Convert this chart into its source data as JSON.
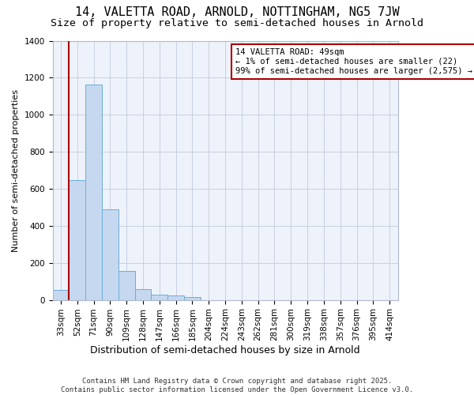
{
  "title": "14, VALETTA ROAD, ARNOLD, NOTTINGHAM, NG5 7JW",
  "subtitle": "Size of property relative to semi-detached houses in Arnold",
  "xlabel": "Distribution of semi-detached houses by size in Arnold",
  "ylabel": "Number of semi-detached properties",
  "bar_color": "#c5d8f0",
  "bar_edge_color": "#6baed6",
  "background_color": "#eef2fa",
  "grid_color": "#c8cfe0",
  "annotation_box_color": "#aa0000",
  "vline_color": "#aa0000",
  "vline_x_idx": 1,
  "annotation_text_line1": "14 VALETTA ROAD: 49sqm",
  "annotation_text_line2": "← 1% of semi-detached houses are smaller (22)",
  "annotation_text_line3": "99% of semi-detached houses are larger (2,575) →",
  "footer_text": "Contains HM Land Registry data © Crown copyright and database right 2025.\nContains public sector information licensed under the Open Government Licence v3.0.",
  "categories": [
    "33sqm",
    "52sqm",
    "71sqm",
    "90sqm",
    "109sqm",
    "128sqm",
    "147sqm",
    "166sqm",
    "185sqm",
    "204sqm",
    "224sqm",
    "243sqm",
    "262sqm",
    "281sqm",
    "300sqm",
    "319sqm",
    "338sqm",
    "357sqm",
    "376sqm",
    "395sqm",
    "414sqm"
  ],
  "values": [
    55,
    648,
    1165,
    487,
    157,
    57,
    30,
    22,
    15,
    0,
    0,
    0,
    0,
    0,
    0,
    0,
    0,
    0,
    0,
    0,
    0
  ],
  "ylim": [
    0,
    1400
  ],
  "yticks": [
    0,
    200,
    400,
    600,
    800,
    1000,
    1200,
    1400
  ],
  "title_fontsize": 11,
  "subtitle_fontsize": 9.5,
  "xlabel_fontsize": 9,
  "ylabel_fontsize": 8,
  "tick_fontsize": 7.5,
  "annot_fontsize": 7.5,
  "footer_fontsize": 6.5
}
